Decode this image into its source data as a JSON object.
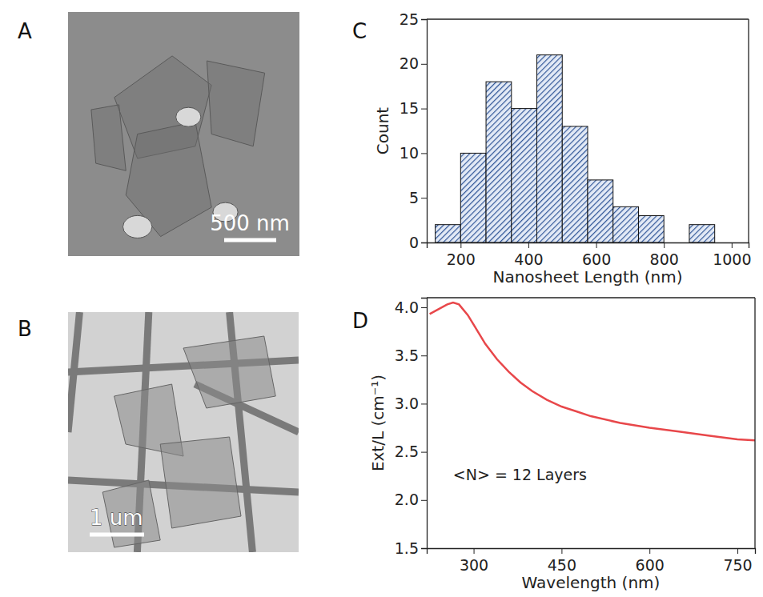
{
  "chart_data": [
    {
      "type": "image",
      "panel": "A",
      "annotations": [
        "500 nm"
      ]
    },
    {
      "type": "image",
      "panel": "B",
      "annotations": [
        "1 um"
      ]
    },
    {
      "type": "histogram",
      "panel": "C",
      "x_label": "Nanosheet Length (nm)",
      "y_label": "Count",
      "bins": [
        125,
        200,
        275,
        350,
        425,
        500,
        575,
        650,
        725,
        800,
        875,
        950
      ],
      "values": [
        2,
        10,
        18,
        15,
        21,
        13,
        7,
        4,
        3,
        0,
        2
      ],
      "color": "#2f5597",
      "xlim": [
        100,
        1050
      ],
      "xticks": [
        200,
        400,
        600,
        800,
        1000
      ],
      "ylim": [
        0,
        25
      ],
      "yticks": [
        0,
        5,
        10,
        15,
        20,
        25
      ]
    },
    {
      "type": "line",
      "panel": "D",
      "x_label": "Wavelength (nm)",
      "y_label": "Ext/L (cm⁻¹)",
      "annotations": [
        "<N> = 12 Layers"
      ],
      "x": [
        225,
        240,
        255,
        265,
        275,
        290,
        300,
        320,
        340,
        360,
        380,
        400,
        425,
        450,
        475,
        500,
        550,
        600,
        650,
        700,
        750,
        780
      ],
      "values": [
        3.93,
        3.98,
        4.03,
        4.05,
        4.03,
        3.92,
        3.82,
        3.62,
        3.46,
        3.33,
        3.22,
        3.13,
        3.04,
        2.97,
        2.92,
        2.87,
        2.8,
        2.75,
        2.71,
        2.67,
        2.63,
        2.62
      ],
      "color": "#e8474a",
      "xlim": [
        220,
        780
      ],
      "xticks": [
        300,
        450,
        600,
        750
      ],
      "ylim": [
        1.5,
        4.1
      ],
      "yticks": [
        1.5,
        {
          "value": 2,
          "label": "2.0"
        },
        2.5,
        {
          "value": 3,
          "label": "3.0"
        },
        3.5,
        {
          "value": 4,
          "label": "4.0"
        }
      ]
    }
  ]
}
